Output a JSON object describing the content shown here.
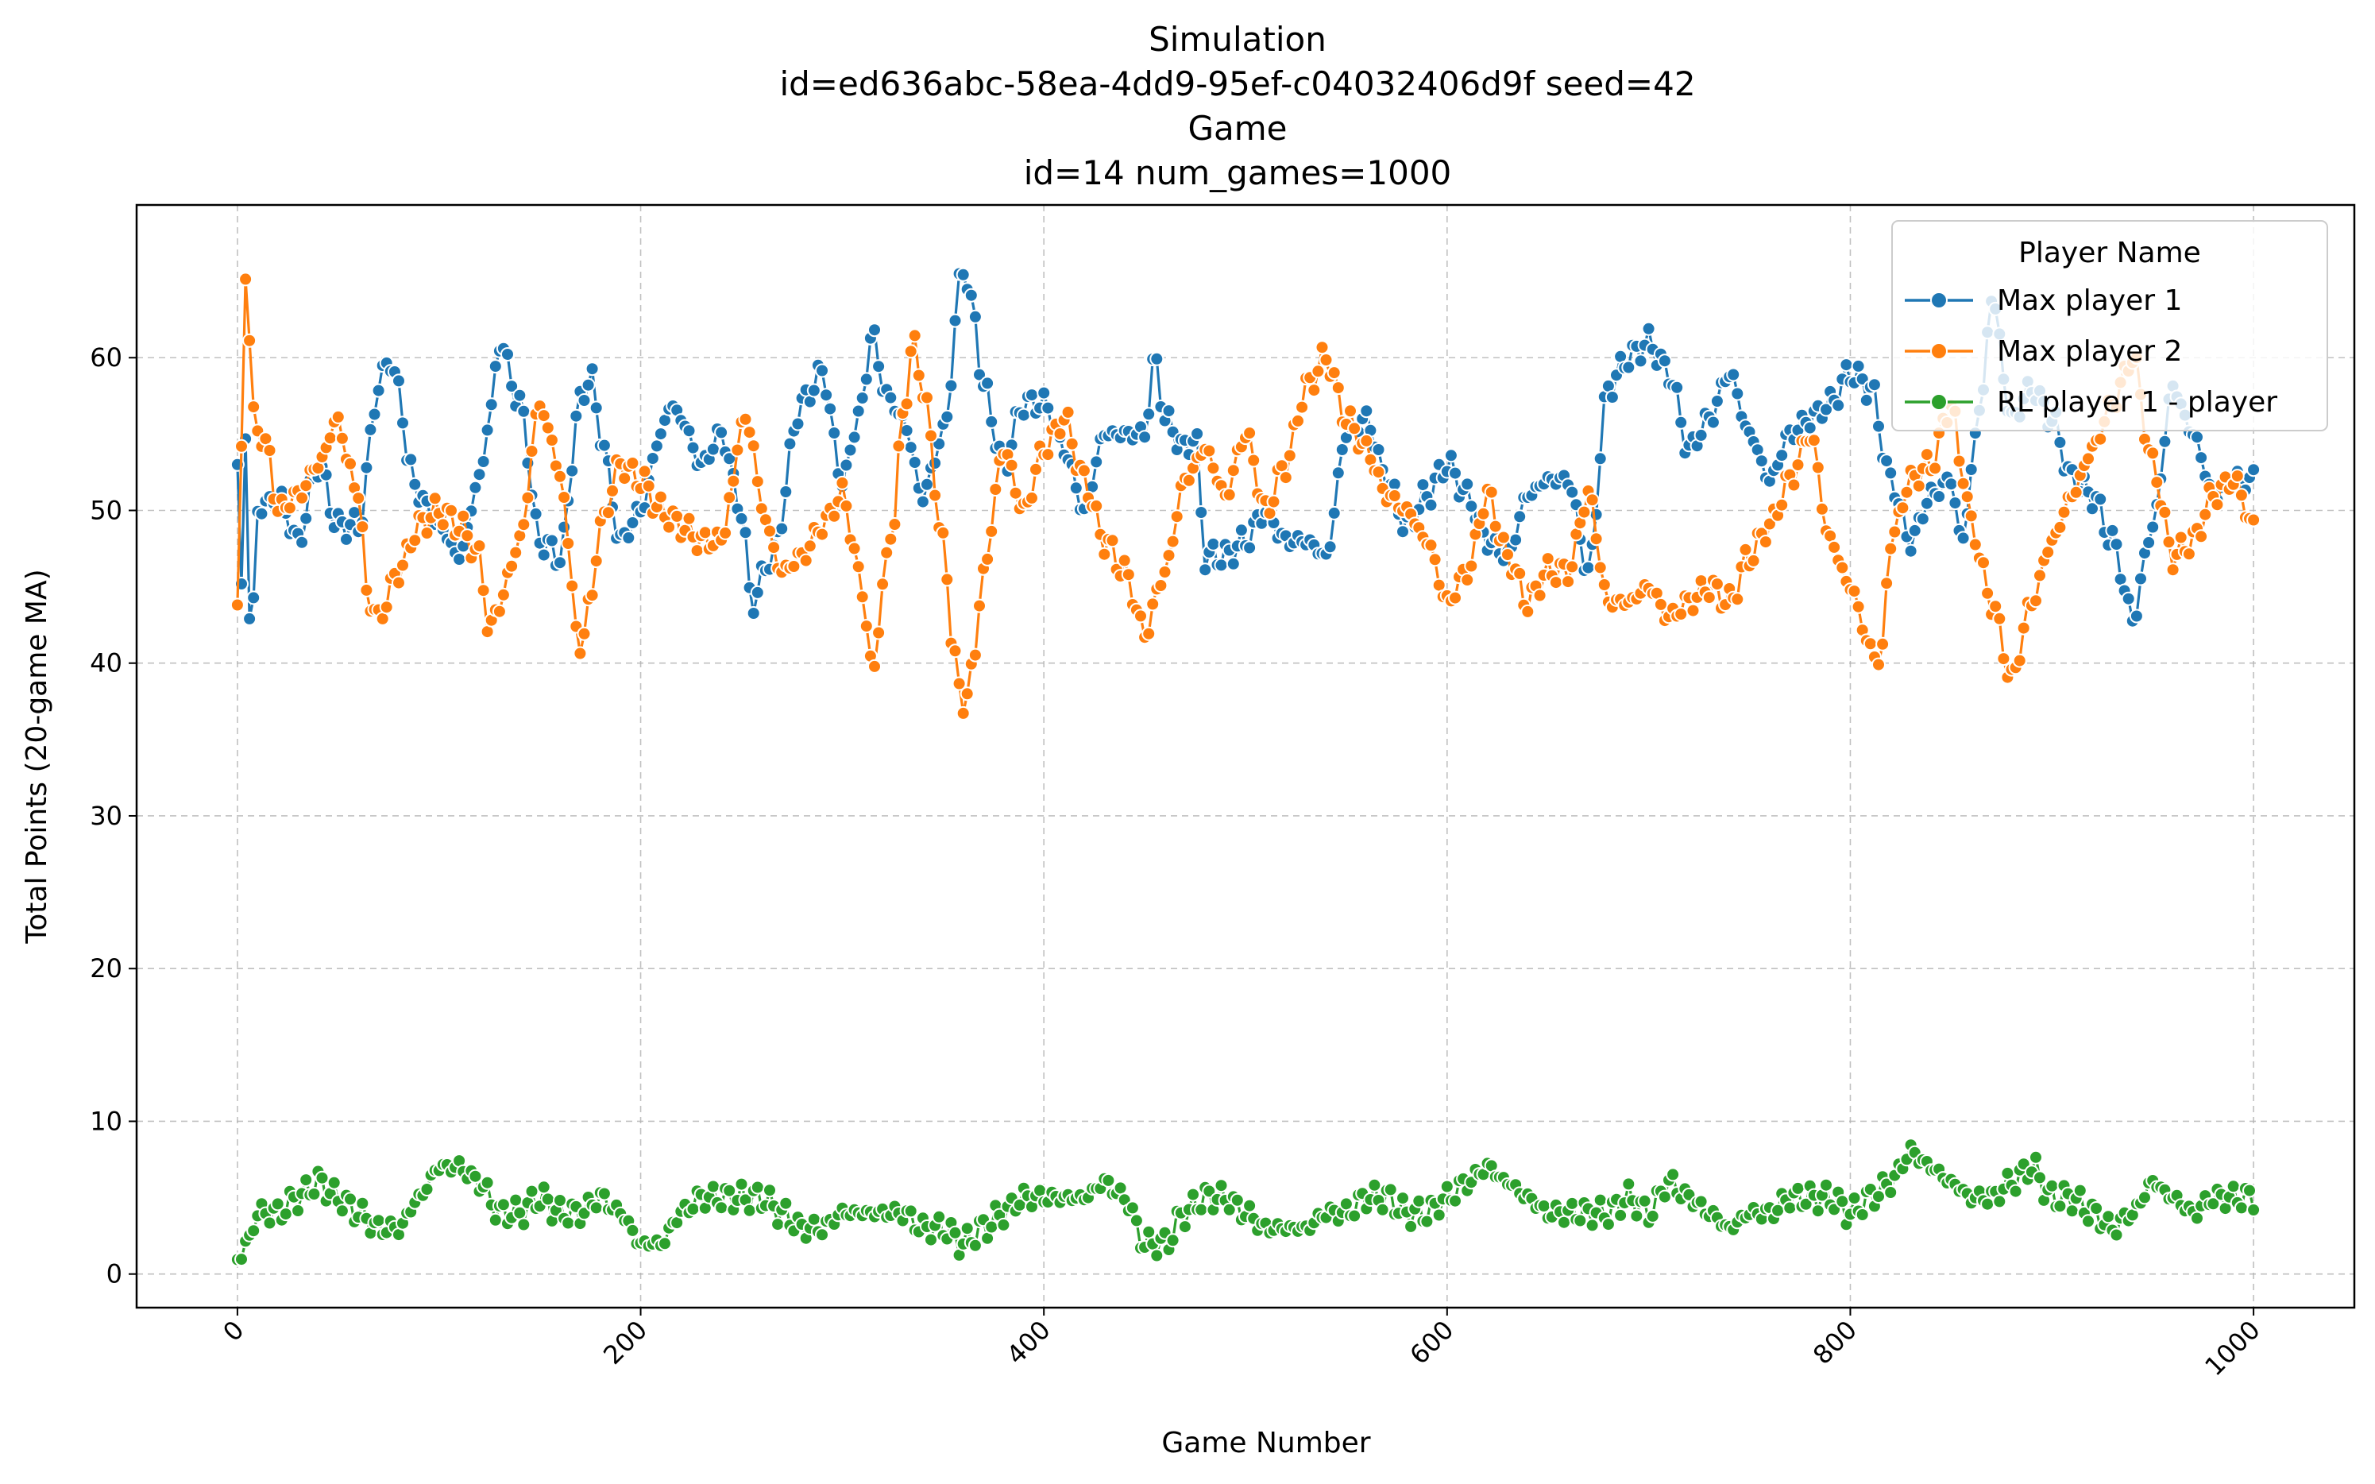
{
  "chart_data": {
    "type": "line",
    "title_lines": [
      "Simulation",
      "id=ed636abc-58ea-4dd9-95ef-c04032406d9f seed=42",
      "Game",
      "id=14 num_games=1000"
    ],
    "xlabel": "Game Number",
    "ylabel": "Total Points (20-game MA)",
    "xlim": [
      -50,
      1050
    ],
    "ylim": [
      -2.2,
      70.0
    ],
    "x_ticks": [
      0,
      200,
      400,
      600,
      800,
      1000
    ],
    "y_ticks": [
      0,
      10,
      20,
      30,
      40,
      50,
      60
    ],
    "grid": true,
    "legend": {
      "title": "Player Name",
      "placement": "upper-right"
    },
    "x_step": 2,
    "series": [
      {
        "name": "Max player 1",
        "color": "#1f77b4",
        "knots": [
          [
            0,
            53
          ],
          [
            2,
            45
          ],
          [
            3,
            59
          ],
          [
            6,
            43
          ],
          [
            8,
            44
          ],
          [
            10,
            50
          ],
          [
            20,
            51
          ],
          [
            30,
            48
          ],
          [
            40,
            53
          ],
          [
            50,
            49
          ],
          [
            60,
            49
          ],
          [
            70,
            58
          ],
          [
            75,
            60
          ],
          [
            80,
            58
          ],
          [
            85,
            53
          ],
          [
            90,
            51
          ],
          [
            100,
            49
          ],
          [
            110,
            47
          ],
          [
            120,
            52
          ],
          [
            125,
            56
          ],
          [
            130,
            61
          ],
          [
            140,
            57
          ],
          [
            150,
            48
          ],
          [
            160,
            47
          ],
          [
            170,
            57
          ],
          [
            175,
            59
          ],
          [
            180,
            55
          ],
          [
            190,
            48
          ],
          [
            200,
            50
          ],
          [
            210,
            55
          ],
          [
            215,
            57
          ],
          [
            220,
            56
          ],
          [
            230,
            53
          ],
          [
            240,
            55
          ],
          [
            250,
            50
          ],
          [
            255,
            44
          ],
          [
            265,
            47
          ],
          [
            280,
            57
          ],
          [
            290,
            59
          ],
          [
            300,
            52
          ],
          [
            310,
            57
          ],
          [
            315,
            62
          ],
          [
            320,
            58
          ],
          [
            330,
            56
          ],
          [
            340,
            51
          ],
          [
            350,
            55
          ],
          [
            360,
            66
          ],
          [
            365,
            63
          ],
          [
            370,
            58
          ],
          [
            380,
            53
          ],
          [
            390,
            57
          ],
          [
            400,
            57
          ],
          [
            410,
            54
          ],
          [
            420,
            50
          ],
          [
            430,
            55
          ],
          [
            440,
            55
          ],
          [
            450,
            55
          ],
          [
            455,
            60
          ],
          [
            460,
            56
          ],
          [
            470,
            54
          ],
          [
            475,
            55
          ],
          [
            480,
            47
          ],
          [
            490,
            47
          ],
          [
            500,
            48
          ],
          [
            510,
            50
          ],
          [
            520,
            48
          ],
          [
            530,
            48
          ],
          [
            540,
            47
          ],
          [
            550,
            55
          ],
          [
            560,
            56
          ],
          [
            570,
            52
          ],
          [
            580,
            49
          ],
          [
            590,
            51
          ],
          [
            600,
            53
          ],
          [
            610,
            51
          ],
          [
            620,
            48
          ],
          [
            630,
            47
          ],
          [
            640,
            51
          ],
          [
            650,
            52
          ],
          [
            660,
            52
          ],
          [
            670,
            46
          ],
          [
            680,
            58
          ],
          [
            690,
            60
          ],
          [
            700,
            61
          ],
          [
            710,
            59
          ],
          [
            720,
            54
          ],
          [
            730,
            56
          ],
          [
            740,
            59
          ],
          [
            750,
            55
          ],
          [
            760,
            52
          ],
          [
            770,
            55
          ],
          [
            780,
            56
          ],
          [
            790,
            57
          ],
          [
            800,
            59
          ],
          [
            810,
            58
          ],
          [
            820,
            52
          ],
          [
            830,
            48
          ],
          [
            840,
            51
          ],
          [
            850,
            52
          ],
          [
            855,
            48
          ],
          [
            865,
            57
          ],
          [
            870,
            64
          ],
          [
            880,
            56
          ],
          [
            890,
            58
          ],
          [
            900,
            56
          ],
          [
            910,
            52
          ],
          [
            920,
            51
          ],
          [
            930,
            48
          ],
          [
            940,
            43
          ],
          [
            950,
            49
          ],
          [
            960,
            58
          ],
          [
            970,
            55
          ],
          [
            980,
            51
          ],
          [
            990,
            52
          ],
          [
            1000,
            52
          ]
        ]
      },
      {
        "name": "Max player 2",
        "color": "#ff7f0e",
        "knots": [
          [
            0,
            43
          ],
          [
            2,
            54
          ],
          [
            4,
            66
          ],
          [
            6,
            61
          ],
          [
            8,
            56
          ],
          [
            15,
            54
          ],
          [
            20,
            50
          ],
          [
            30,
            51
          ],
          [
            40,
            53
          ],
          [
            50,
            56
          ],
          [
            55,
            53
          ],
          [
            60,
            51
          ],
          [
            65,
            44
          ],
          [
            70,
            43
          ],
          [
            80,
            46
          ],
          [
            90,
            49
          ],
          [
            100,
            50
          ],
          [
            110,
            49
          ],
          [
            120,
            47
          ],
          [
            125,
            42
          ],
          [
            130,
            44
          ],
          [
            140,
            48
          ],
          [
            150,
            57
          ],
          [
            155,
            55
          ],
          [
            160,
            52
          ],
          [
            170,
            41
          ],
          [
            175,
            44
          ],
          [
            180,
            49
          ],
          [
            190,
            53
          ],
          [
            200,
            52
          ],
          [
            210,
            50
          ],
          [
            220,
            49
          ],
          [
            230,
            48
          ],
          [
            240,
            48
          ],
          [
            245,
            51
          ],
          [
            250,
            56
          ],
          [
            255,
            55
          ],
          [
            260,
            50
          ],
          [
            270,
            46
          ],
          [
            280,
            47
          ],
          [
            290,
            49
          ],
          [
            300,
            51
          ],
          [
            310,
            45
          ],
          [
            315,
            39
          ],
          [
            320,
            45
          ],
          [
            325,
            49
          ],
          [
            330,
            56
          ],
          [
            335,
            61
          ],
          [
            340,
            58
          ],
          [
            350,
            48
          ],
          [
            355,
            41
          ],
          [
            360,
            37
          ],
          [
            365,
            40
          ],
          [
            370,
            46
          ],
          [
            380,
            54
          ],
          [
            390,
            50
          ],
          [
            400,
            54
          ],
          [
            410,
            56
          ],
          [
            420,
            52
          ],
          [
            430,
            48
          ],
          [
            440,
            46
          ],
          [
            450,
            42
          ],
          [
            460,
            46
          ],
          [
            470,
            52
          ],
          [
            480,
            54
          ],
          [
            490,
            51
          ],
          [
            500,
            55
          ],
          [
            510,
            50
          ],
          [
            520,
            53
          ],
          [
            530,
            58
          ],
          [
            540,
            60
          ],
          [
            550,
            56
          ],
          [
            560,
            54
          ],
          [
            570,
            51
          ],
          [
            580,
            50
          ],
          [
            590,
            48
          ],
          [
            600,
            44
          ],
          [
            610,
            46
          ],
          [
            620,
            51
          ],
          [
            630,
            47
          ],
          [
            640,
            44
          ],
          [
            650,
            46
          ],
          [
            660,
            46
          ],
          [
            670,
            51
          ],
          [
            680,
            44
          ],
          [
            690,
            44
          ],
          [
            700,
            45
          ],
          [
            710,
            43
          ],
          [
            720,
            44
          ],
          [
            730,
            45
          ],
          [
            740,
            44
          ],
          [
            750,
            47
          ],
          [
            760,
            49
          ],
          [
            770,
            52
          ],
          [
            780,
            55
          ],
          [
            790,
            48
          ],
          [
            800,
            45
          ],
          [
            810,
            41
          ],
          [
            815,
            40
          ],
          [
            820,
            48
          ],
          [
            830,
            52
          ],
          [
            840,
            53
          ],
          [
            850,
            57
          ],
          [
            855,
            53
          ],
          [
            860,
            49
          ],
          [
            870,
            44
          ],
          [
            880,
            39
          ],
          [
            890,
            44
          ],
          [
            900,
            48
          ],
          [
            910,
            51
          ],
          [
            920,
            54
          ],
          [
            930,
            57
          ],
          [
            940,
            60
          ],
          [
            950,
            53
          ],
          [
            960,
            47
          ],
          [
            970,
            48
          ],
          [
            980,
            51
          ],
          [
            990,
            52
          ],
          [
            1000,
            49
          ]
        ]
      },
      {
        "name": "RL player 1 - player",
        "color": "#2ca02c",
        "knots": [
          [
            0,
            1
          ],
          [
            5,
            2
          ],
          [
            10,
            4
          ],
          [
            20,
            4
          ],
          [
            30,
            5
          ],
          [
            40,
            6
          ],
          [
            50,
            5
          ],
          [
            60,
            4
          ],
          [
            70,
            3
          ],
          [
            80,
            3
          ],
          [
            90,
            5
          ],
          [
            100,
            7
          ],
          [
            110,
            7
          ],
          [
            120,
            6
          ],
          [
            130,
            4
          ],
          [
            140,
            4
          ],
          [
            150,
            5
          ],
          [
            160,
            4
          ],
          [
            170,
            4
          ],
          [
            180,
            5
          ],
          [
            190,
            4
          ],
          [
            200,
            2
          ],
          [
            210,
            2
          ],
          [
            220,
            4
          ],
          [
            230,
            5
          ],
          [
            240,
            5
          ],
          [
            250,
            5
          ],
          [
            260,
            5
          ],
          [
            270,
            4
          ],
          [
            280,
            3
          ],
          [
            290,
            3
          ],
          [
            300,
            4
          ],
          [
            310,
            4
          ],
          [
            320,
            4
          ],
          [
            330,
            4
          ],
          [
            340,
            3
          ],
          [
            350,
            3
          ],
          [
            360,
            2
          ],
          [
            370,
            3
          ],
          [
            380,
            4
          ],
          [
            390,
            5
          ],
          [
            400,
            5
          ],
          [
            410,
            5
          ],
          [
            420,
            5
          ],
          [
            430,
            6
          ],
          [
            440,
            5
          ],
          [
            450,
            2
          ],
          [
            460,
            2
          ],
          [
            470,
            4
          ],
          [
            480,
            5
          ],
          [
            490,
            5
          ],
          [
            500,
            4
          ],
          [
            510,
            3
          ],
          [
            520,
            3
          ],
          [
            530,
            3
          ],
          [
            540,
            4
          ],
          [
            550,
            4
          ],
          [
            560,
            5
          ],
          [
            570,
            5
          ],
          [
            580,
            4
          ],
          [
            590,
            4
          ],
          [
            600,
            5
          ],
          [
            610,
            6
          ],
          [
            620,
            7
          ],
          [
            630,
            6
          ],
          [
            640,
            5
          ],
          [
            650,
            4
          ],
          [
            660,
            4
          ],
          [
            670,
            4
          ],
          [
            680,
            4
          ],
          [
            690,
            5
          ],
          [
            700,
            4
          ],
          [
            710,
            6
          ],
          [
            720,
            5
          ],
          [
            730,
            4
          ],
          [
            740,
            3
          ],
          [
            750,
            4
          ],
          [
            760,
            4
          ],
          [
            770,
            5
          ],
          [
            780,
            5
          ],
          [
            790,
            5
          ],
          [
            800,
            4
          ],
          [
            810,
            5
          ],
          [
            820,
            6
          ],
          [
            830,
            8
          ],
          [
            840,
            7
          ],
          [
            850,
            6
          ],
          [
            860,
            5
          ],
          [
            870,
            5
          ],
          [
            880,
            6
          ],
          [
            890,
            7
          ],
          [
            900,
            5
          ],
          [
            910,
            5
          ],
          [
            920,
            4
          ],
          [
            930,
            3
          ],
          [
            940,
            4
          ],
          [
            950,
            6
          ],
          [
            960,
            5
          ],
          [
            970,
            4
          ],
          [
            980,
            5
          ],
          [
            990,
            5
          ],
          [
            1000,
            5
          ]
        ]
      }
    ]
  }
}
